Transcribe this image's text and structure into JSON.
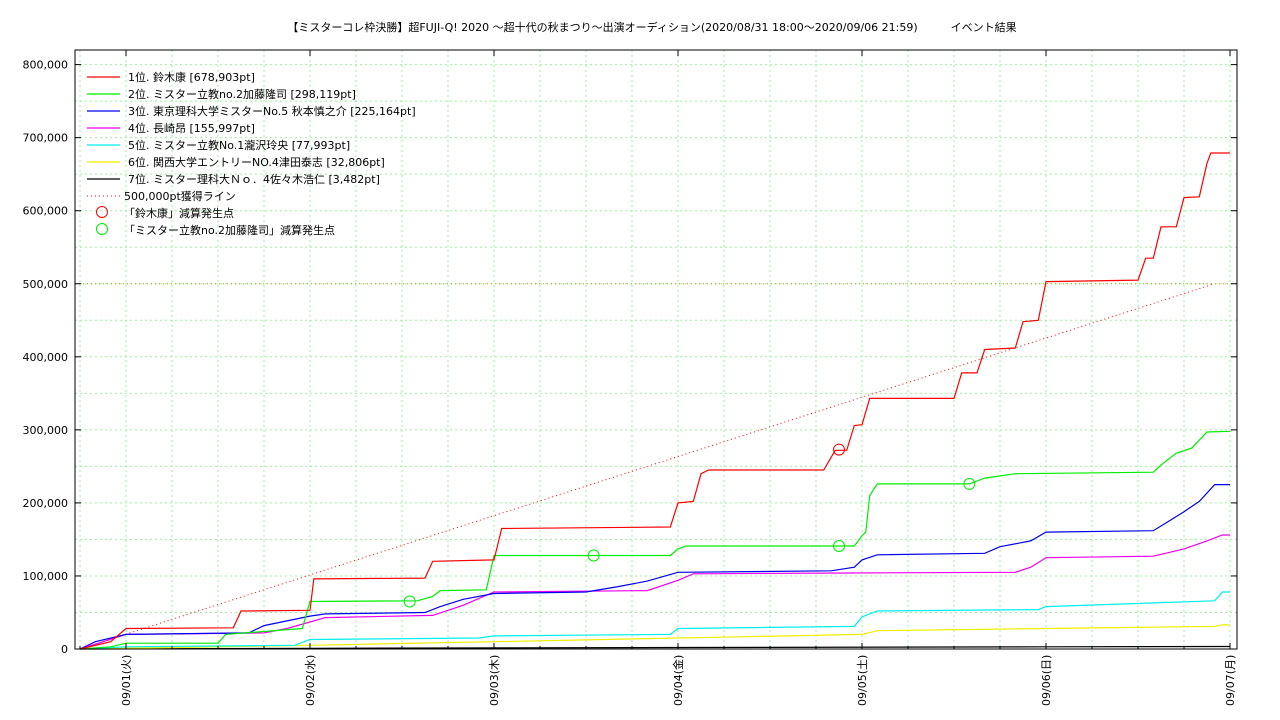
{
  "chart_data": {
    "type": "line",
    "title": "【ミスターコレ枠決勝】超FUJI-Q! 2020 〜超十代の秋まつり〜出演オーディション(2020/08/31 18:00〜2020/09/06 21:59)　　　イベント結果",
    "xlabel": "",
    "ylabel": "",
    "xlim": [
      "2020-08-31 18:00",
      "2020-09-07 00:00"
    ],
    "ylim": [
      0,
      820000
    ],
    "x_ticks": [
      "09/01(火)",
      "09/02(水)",
      "09/03(木)",
      "09/04(金)",
      "09/05(土)",
      "09/06(日)",
      "09/07(月)"
    ],
    "y_ticks": [
      "0",
      "100,000",
      "200,000",
      "300,000",
      "400,000",
      "500,000",
      "600,000",
      "700,000",
      "800,000"
    ],
    "grid": true,
    "legend_position": "top-left",
    "series": [
      {
        "name": "1位. 鈴木康 [678,903pt]",
        "color": "#ff0000",
        "points": [
          [
            "2020-08-31 18:00",
            0
          ],
          [
            "2020-08-31 22:00",
            10000
          ],
          [
            "2020-09-01 00:00",
            28000
          ],
          [
            "2020-09-01 14:00",
            29000
          ],
          [
            "2020-09-01 15:00",
            52000
          ],
          [
            "2020-09-02 00:00",
            53000
          ],
          [
            "2020-09-02 00:30",
            96000
          ],
          [
            "2020-09-02 15:00",
            97000
          ],
          [
            "2020-09-02 16:00",
            120000
          ],
          [
            "2020-09-03 00:00",
            122000
          ],
          [
            "2020-09-03 01:00",
            165000
          ],
          [
            "2020-09-03 23:00",
            167000
          ],
          [
            "2020-09-04 00:00",
            200000
          ],
          [
            "2020-09-04 02:00",
            202000
          ],
          [
            "2020-09-04 03:00",
            240000
          ],
          [
            "2020-09-04 04:00",
            245000
          ],
          [
            "2020-09-04 19:00",
            245000
          ],
          [
            "2020-09-04 20:30",
            272000
          ],
          [
            "2020-09-04 22:00",
            272000
          ],
          [
            "2020-09-04 23:00",
            306000
          ],
          [
            "2020-09-05 00:00",
            307000
          ],
          [
            "2020-09-05 01:00",
            343000
          ],
          [
            "2020-09-05 12:00",
            343000
          ],
          [
            "2020-09-05 13:00",
            378000
          ],
          [
            "2020-09-05 15:00",
            378000
          ],
          [
            "2020-09-05 16:00",
            410000
          ],
          [
            "2020-09-05 20:00",
            412000
          ],
          [
            "2020-09-05 21:00",
            448000
          ],
          [
            "2020-09-05 23:00",
            450000
          ],
          [
            "2020-09-06 00:00",
            503000
          ],
          [
            "2020-09-06 12:00",
            505000
          ],
          [
            "2020-09-06 13:00",
            535000
          ],
          [
            "2020-09-06 14:00",
            535000
          ],
          [
            "2020-09-06 15:00",
            578000
          ],
          [
            "2020-09-06 17:00",
            578000
          ],
          [
            "2020-09-06 18:00",
            618000
          ],
          [
            "2020-09-06 20:00",
            619000
          ],
          [
            "2020-09-06 21:00",
            665000
          ],
          [
            "2020-09-06 21:30",
            679000
          ],
          [
            "2020-09-07 00:00",
            679000
          ]
        ]
      },
      {
        "name": "2位. ミスター立教no.2加藤隆司 [298,119pt]",
        "color": "#00ee00",
        "points": [
          [
            "2020-08-31 18:00",
            0
          ],
          [
            "2020-08-31 22:00",
            3000
          ],
          [
            "2020-09-01 00:00",
            8000
          ],
          [
            "2020-09-01 12:00",
            8000
          ],
          [
            "2020-09-01 13:00",
            20000
          ],
          [
            "2020-09-01 23:00",
            28000
          ],
          [
            "2020-09-02 00:00",
            65000
          ],
          [
            "2020-09-02 14:00",
            66000
          ],
          [
            "2020-09-02 16:00",
            72000
          ],
          [
            "2020-09-02 17:00",
            80000
          ],
          [
            "2020-09-02 23:00",
            81000
          ],
          [
            "2020-09-03 00:00",
            128000
          ],
          [
            "2020-09-03 23:00",
            128000
          ],
          [
            "2020-09-04 00:00",
            137000
          ],
          [
            "2020-09-04 01:00",
            141000
          ],
          [
            "2020-09-04 23:00",
            141000
          ],
          [
            "2020-09-05 00:00",
            155000
          ],
          [
            "2020-09-05 00:30",
            160000
          ],
          [
            "2020-09-05 01:00",
            210000
          ],
          [
            "2020-09-05 02:00",
            226000
          ],
          [
            "2020-09-05 14:00",
            226000
          ],
          [
            "2020-09-05 16:00",
            234000
          ],
          [
            "2020-09-05 20:00",
            240000
          ],
          [
            "2020-09-06 14:00",
            242000
          ],
          [
            "2020-09-06 15:00",
            252000
          ],
          [
            "2020-09-06 17:00",
            268000
          ],
          [
            "2020-09-06 19:00",
            275000
          ],
          [
            "2020-09-06 21:00",
            297000
          ],
          [
            "2020-09-07 00:00",
            298000
          ]
        ]
      },
      {
        "name": "3位. 東京理科大学ミスターNo.5 秋本慎之介 [225,164pt]",
        "color": "#0000ee",
        "points": [
          [
            "2020-08-31 18:00",
            0
          ],
          [
            "2020-08-31 20:00",
            10000
          ],
          [
            "2020-09-01 00:00",
            20000
          ],
          [
            "2020-09-01 16:00",
            22000
          ],
          [
            "2020-09-01 18:00",
            32000
          ],
          [
            "2020-09-02 00:00",
            45000
          ],
          [
            "2020-09-02 02:00",
            48000
          ],
          [
            "2020-09-02 15:00",
            50000
          ],
          [
            "2020-09-02 17:00",
            58000
          ],
          [
            "2020-09-02 20:00",
            68000
          ],
          [
            "2020-09-03 00:00",
            76000
          ],
          [
            "2020-09-03 12:00",
            78000
          ],
          [
            "2020-09-03 16:00",
            85000
          ],
          [
            "2020-09-03 20:00",
            93000
          ],
          [
            "2020-09-04 00:00",
            105000
          ],
          [
            "2020-09-04 20:00",
            107000
          ],
          [
            "2020-09-04 23:00",
            112000
          ],
          [
            "2020-09-05 00:00",
            122000
          ],
          [
            "2020-09-05 02:00",
            129000
          ],
          [
            "2020-09-05 16:00",
            131000
          ],
          [
            "2020-09-05 18:00",
            140000
          ],
          [
            "2020-09-05 22:00",
            148000
          ],
          [
            "2020-09-06 00:00",
            160000
          ],
          [
            "2020-09-06 14:00",
            162000
          ],
          [
            "2020-09-06 16:00",
            175000
          ],
          [
            "2020-09-06 18:00",
            188000
          ],
          [
            "2020-09-06 20:00",
            202000
          ],
          [
            "2020-09-06 22:00",
            225000
          ],
          [
            "2020-09-07 00:00",
            225000
          ]
        ]
      },
      {
        "name": "4位. 長崎昂 [155,997pt]",
        "color": "#ee00ee",
        "points": [
          [
            "2020-08-31 18:00",
            0
          ],
          [
            "2020-09-01 00:00",
            20000
          ],
          [
            "2020-09-01 18:00",
            22000
          ],
          [
            "2020-09-01 21:00",
            28000
          ],
          [
            "2020-09-02 00:00",
            37000
          ],
          [
            "2020-09-02 02:00",
            43000
          ],
          [
            "2020-09-02 16:00",
            46000
          ],
          [
            "2020-09-02 20:00",
            60000
          ],
          [
            "2020-09-03 00:00",
            78000
          ],
          [
            "2020-09-03 20:00",
            80000
          ],
          [
            "2020-09-04 00:00",
            94000
          ],
          [
            "2020-09-04 02:00",
            103000
          ],
          [
            "2020-09-04 22:00",
            104000
          ],
          [
            "2020-09-05 20:00",
            105000
          ],
          [
            "2020-09-05 22:00",
            112000
          ],
          [
            "2020-09-06 00:00",
            125000
          ],
          [
            "2020-09-06 14:00",
            127000
          ],
          [
            "2020-09-06 18:00",
            137000
          ],
          [
            "2020-09-06 21:00",
            148000
          ],
          [
            "2020-09-06 23:00",
            156000
          ],
          [
            "2020-09-07 00:00",
            156000
          ]
        ]
      },
      {
        "name": "5位. ミスター立教No.1瀧沢玲央 [77,993pt]",
        "color": "#00eeee",
        "points": [
          [
            "2020-08-31 18:00",
            0
          ],
          [
            "2020-09-01 00:00",
            3000
          ],
          [
            "2020-09-01 22:00",
            5000
          ],
          [
            "2020-09-02 00:00",
            13000
          ],
          [
            "2020-09-02 22:00",
            15000
          ],
          [
            "2020-09-03 00:00",
            18000
          ],
          [
            "2020-09-03 23:00",
            20000
          ],
          [
            "2020-09-04 00:00",
            28000
          ],
          [
            "2020-09-04 23:00",
            31000
          ],
          [
            "2020-09-05 00:00",
            44000
          ],
          [
            "2020-09-05 02:00",
            52000
          ],
          [
            "2020-09-05 23:00",
            54000
          ],
          [
            "2020-09-06 00:00",
            58000
          ],
          [
            "2020-09-06 22:00",
            66000
          ],
          [
            "2020-09-06 23:00",
            78000
          ],
          [
            "2020-09-07 00:00",
            78000
          ]
        ]
      },
      {
        "name": "6位. 関西大学エントリーNO.4津田泰志 [32,806pt]",
        "color": "#eeee00",
        "points": [
          [
            "2020-08-31 18:00",
            0
          ],
          [
            "2020-09-01 00:00",
            1000
          ],
          [
            "2020-09-02 00:00",
            5000
          ],
          [
            "2020-09-03 00:00",
            10000
          ],
          [
            "2020-09-04 00:00",
            15000
          ],
          [
            "2020-09-05 00:00",
            20000
          ],
          [
            "2020-09-05 02:00",
            25000
          ],
          [
            "2020-09-06 00:00",
            28000
          ],
          [
            "2020-09-06 22:00",
            31000
          ],
          [
            "2020-09-06 23:00",
            33000
          ],
          [
            "2020-09-07 00:00",
            33000
          ]
        ]
      },
      {
        "name": "7位. ミスター理科大Ｎｏ．4佐々木浩仁 [3,482pt]",
        "color": "#000000",
        "points": [
          [
            "2020-08-31 18:00",
            0
          ],
          [
            "2020-09-02 00:00",
            1000
          ],
          [
            "2020-09-04 00:00",
            2000
          ],
          [
            "2020-09-06 00:00",
            3000
          ],
          [
            "2020-09-07 00:00",
            3482
          ]
        ]
      }
    ],
    "reference_line": {
      "name": "500,000pt獲得ライン",
      "color": "#ff0000",
      "style": "dotted",
      "points": [
        [
          "2020-08-31 18:00",
          0
        ],
        [
          "2020-09-06 21:59",
          500000
        ]
      ],
      "horizontal_y": 500000
    },
    "markers": [
      {
        "name": "「鈴木康」減算発生点",
        "color": "#ff0000",
        "points": [
          [
            "2020-09-04 21:00",
            273000
          ]
        ]
      },
      {
        "name": "「ミスター立教no.2加藤隆司」減算発生点",
        "color": "#00ee00",
        "points": [
          [
            "2020-09-02 13:00",
            65000
          ],
          [
            "2020-09-03 13:00",
            128000
          ],
          [
            "2020-09-04 21:00",
            141000
          ],
          [
            "2020-09-05 14:00",
            226000
          ]
        ]
      }
    ]
  }
}
